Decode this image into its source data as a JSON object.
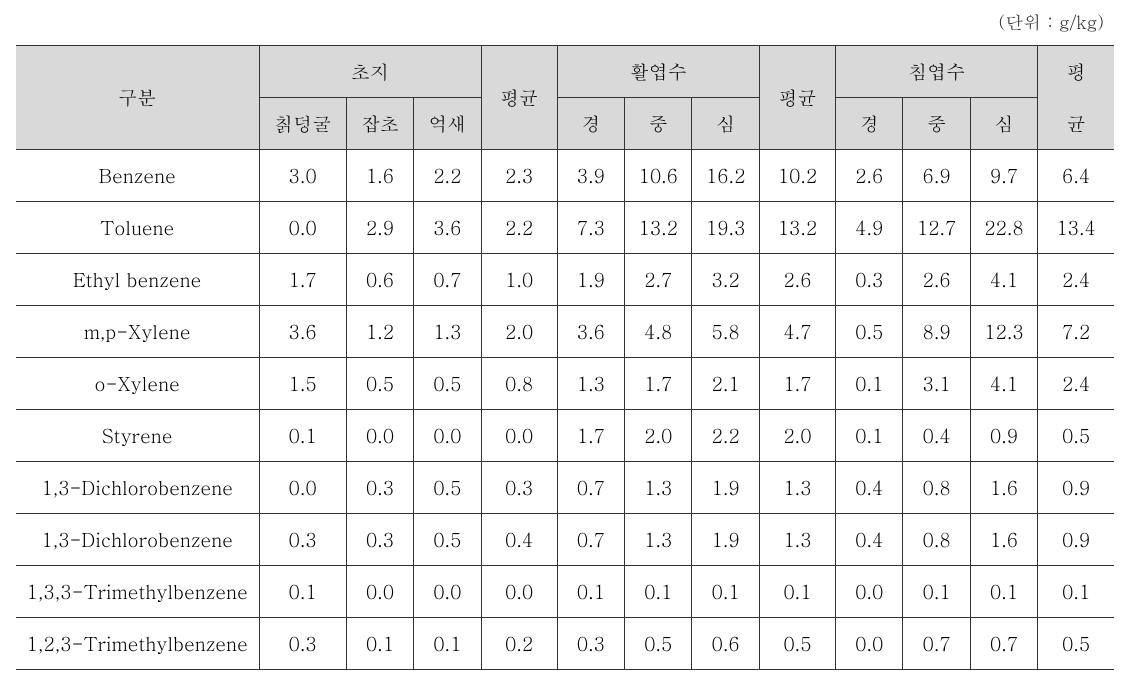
{
  "unit_label": "(단위 : g/kg)",
  "header": {
    "category": "구분",
    "group1": "초지",
    "sub1_1": "칡덩굴",
    "sub1_2": "잡초",
    "sub1_3": "억새",
    "avg1": "평균",
    "group2": "활엽수",
    "sub2_1": "경",
    "sub2_2": "중",
    "sub2_3": "심",
    "avg2": "평균",
    "group3": "침엽수",
    "sub3_1": "경",
    "sub3_2": "중",
    "sub3_3": "심",
    "avg3_1": "평",
    "avg3_2": "균"
  },
  "rows": [
    {
      "name": "Benzene",
      "v": [
        "3.0",
        "1.6",
        "2.2",
        "2.3",
        "3.9",
        "10.6",
        "16.2",
        "10.2",
        "2.6",
        "6.9",
        "9.7",
        "6.4"
      ]
    },
    {
      "name": "Toluene",
      "v": [
        "0.0",
        "2.9",
        "3.6",
        "2.2",
        "7.3",
        "13.2",
        "19.3",
        "13.2",
        "4.9",
        "12.7",
        "22.8",
        "13.4"
      ]
    },
    {
      "name": "Ethyl benzene",
      "v": [
        "1.7",
        "0.6",
        "0.7",
        "1.0",
        "1.9",
        "2.7",
        "3.2",
        "2.6",
        "0.3",
        "2.6",
        "4.1",
        "2.4"
      ]
    },
    {
      "name": "m,p-Xylene",
      "v": [
        "3.6",
        "1.2",
        "1.3",
        "2.0",
        "3.6",
        "4.8",
        "5.8",
        "4.7",
        "0.5",
        "8.9",
        "12.3",
        "7.2"
      ]
    },
    {
      "name": "o-Xylene",
      "v": [
        "1.5",
        "0.5",
        "0.5",
        "0.8",
        "1.3",
        "1.7",
        "2.1",
        "1.7",
        "0.1",
        "3.1",
        "4.1",
        "2.4"
      ]
    },
    {
      "name": "Styrene",
      "v": [
        "0.1",
        "0.0",
        "0.0",
        "0.0",
        "1.7",
        "2.0",
        "2.2",
        "2.0",
        "0.1",
        "0.4",
        "0.9",
        "0.5"
      ]
    },
    {
      "name": "1,3-Dichlorobenzene",
      "v": [
        "0.0",
        "0.3",
        "0.5",
        "0.3",
        "0.7",
        "1.3",
        "1.9",
        "1.3",
        "0.4",
        "0.8",
        "1.6",
        "0.9"
      ]
    },
    {
      "name": "1,3-Dichlorobenzene",
      "v": [
        "0.3",
        "0.3",
        "0.5",
        "0.4",
        "0.7",
        "1.3",
        "1.9",
        "1.3",
        "0.4",
        "0.8",
        "1.6",
        "0.9"
      ]
    },
    {
      "name": "1,3,3-Trimethylbenzene",
      "v": [
        "0.1",
        "0.0",
        "0.0",
        "0.0",
        "0.1",
        "0.1",
        "0.1",
        "0.1",
        "0.0",
        "0.1",
        "0.1",
        "0.1"
      ]
    },
    {
      "name": "1,2,3-Trimethylbenzene",
      "v": [
        "0.3",
        "0.1",
        "0.1",
        "0.2",
        "0.3",
        "0.5",
        "0.6",
        "0.5",
        "0.0",
        "0.7",
        "0.7",
        "0.5"
      ]
    }
  ]
}
